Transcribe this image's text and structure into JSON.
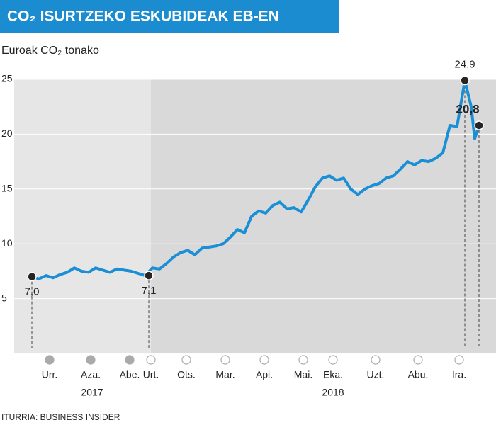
{
  "chart_data": {
    "type": "line",
    "title": "CO₂ ISURTZEKO ESKUBIDEAK EB-EN",
    "y_label": "Euroak CO₂ tonako",
    "source": "ITURRIA: BUSINESS INSIDER",
    "xlim": [
      0,
      68
    ],
    "ylim": [
      0,
      25
    ],
    "yticks": [
      5,
      10,
      15,
      20,
      25
    ],
    "grid": true,
    "highlight_xlim": [
      19.3,
      68
    ],
    "xticks": [
      {
        "value": 5.0,
        "label": "Urr."
      },
      {
        "value": 10.8,
        "label": "Aza."
      },
      {
        "value": 16.3,
        "label": "Abe."
      },
      {
        "value": 19.3,
        "label": "Urt."
      },
      {
        "value": 24.3,
        "label": "Ots."
      },
      {
        "value": 29.8,
        "label": "Mar."
      },
      {
        "value": 35.3,
        "label": "Api."
      },
      {
        "value": 40.8,
        "label": "Mai."
      },
      {
        "value": 45.0,
        "label": "Eka."
      },
      {
        "value": 51.0,
        "label": "Uzt."
      },
      {
        "value": 57.0,
        "label": "Abu."
      },
      {
        "value": 62.8,
        "label": "Ira."
      }
    ],
    "year_labels": [
      {
        "x": 11.0,
        "label": "2017"
      },
      {
        "x": 45.0,
        "label": "2018"
      }
    ],
    "x": [
      2.5,
      3.5,
      4.5,
      5.5,
      6.5,
      7.5,
      8.5,
      9.5,
      10.5,
      11.5,
      12.5,
      13.5,
      14.5,
      15.5,
      16.5,
      17.5,
      18.5,
      19.5,
      20.5,
      21.5,
      22.5,
      23.5,
      24.5,
      25.5,
      26.5,
      27.5,
      28.5,
      29.5,
      30.5,
      31.5,
      32.5,
      33.5,
      34.5,
      35.5,
      36.5,
      37.5,
      38.5,
      39.5,
      40.5,
      41.5,
      42.5,
      43.5,
      44.5,
      45.5,
      46.5,
      47.5,
      48.5,
      49.5,
      50.5,
      51.5,
      52.5,
      53.5,
      54.5,
      55.5,
      56.5,
      57.5,
      58.5,
      59.5,
      60.5,
      61.5,
      62.5,
      63.6,
      64.5,
      65.0,
      65.6
    ],
    "series": [
      {
        "color": "#1a8fd6",
        "values": [
          7.0,
          6.8,
          7.1,
          6.9,
          7.2,
          7.4,
          7.8,
          7.5,
          7.4,
          7.8,
          7.6,
          7.4,
          7.7,
          7.6,
          7.5,
          7.3,
          7.1,
          7.8,
          7.7,
          8.2,
          8.8,
          9.2,
          9.4,
          9.0,
          9.6,
          9.7,
          9.8,
          10.0,
          10.6,
          11.3,
          11.0,
          12.5,
          13.0,
          12.8,
          13.5,
          13.8,
          13.2,
          13.3,
          12.9,
          14.0,
          15.2,
          16.0,
          16.2,
          15.8,
          16.0,
          15.0,
          14.5,
          15.0,
          15.3,
          15.5,
          16.0,
          16.2,
          16.8,
          17.5,
          17.2,
          17.6,
          17.5,
          17.8,
          18.3,
          20.8,
          20.7,
          24.9,
          22.5,
          19.6,
          20.8
        ]
      }
    ],
    "annotations": [
      {
        "x": 2.5,
        "y": 7.0,
        "label": "7,0",
        "position": "below",
        "bold": false
      },
      {
        "x": 19.0,
        "y": 7.1,
        "label": "7,1",
        "position": "below",
        "bold": false
      },
      {
        "x": 63.6,
        "y": 24.9,
        "label": "24,9",
        "position": "above",
        "bold": false
      },
      {
        "x": 65.6,
        "y": 20.8,
        "label": "20,8",
        "position": "above",
        "bold": true
      }
    ]
  }
}
